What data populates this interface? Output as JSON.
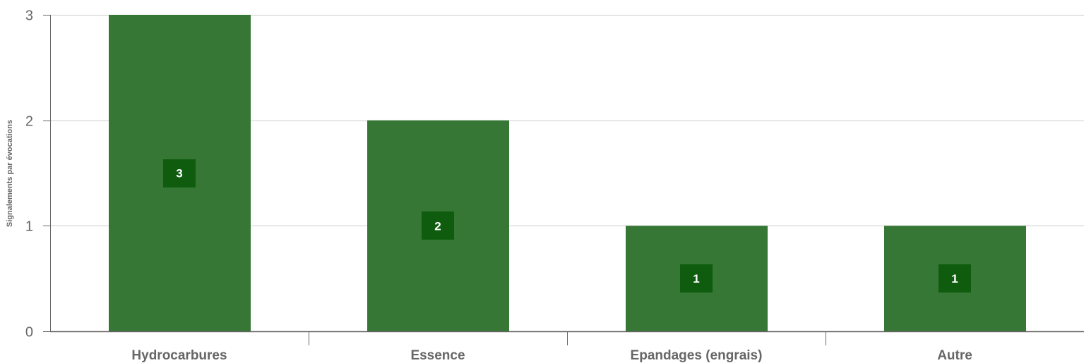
{
  "chart_data": {
    "type": "bar",
    "categories": [
      "Hydrocarbures",
      "Essence",
      "Epandages (engrais)",
      "Autre"
    ],
    "values": [
      3,
      2,
      1,
      1
    ],
    "data_labels": [
      "3",
      "2",
      "1",
      "1"
    ],
    "ylabel": "Signalements par évocations",
    "xlabel": "",
    "ylim": [
      0,
      3
    ],
    "yticks": [
      0,
      1,
      2,
      3
    ],
    "grid": true,
    "colors": {
      "bar": "#367735",
      "label_box": "#0f5c0f",
      "grid": "#cccccc",
      "axis": "#666666",
      "text": "#666666"
    }
  }
}
